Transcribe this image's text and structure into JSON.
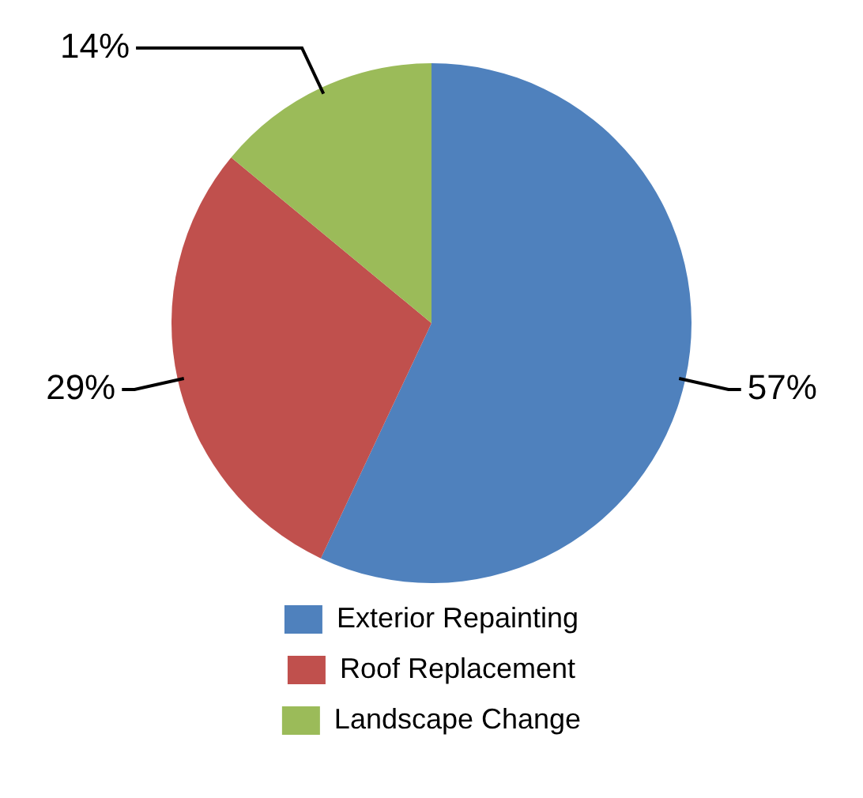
{
  "chart_data": {
    "type": "pie",
    "categories": [
      "Exterior Repainting",
      "Roof Replacement",
      "Landscape Change"
    ],
    "values": [
      57,
      29,
      14
    ],
    "colors": [
      "#4f81bd",
      "#c0504d",
      "#9bbb59"
    ],
    "value_labels": [
      "57%",
      "29%",
      "14%"
    ],
    "legend": "bottom"
  }
}
